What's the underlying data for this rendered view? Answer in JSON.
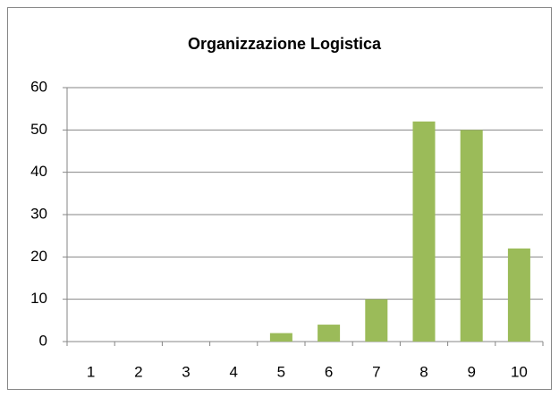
{
  "chart_data": {
    "type": "bar",
    "title": "Organizzazione Logistica",
    "categories": [
      "1",
      "2",
      "3",
      "4",
      "5",
      "6",
      "7",
      "8",
      "9",
      "10"
    ],
    "values": [
      0,
      0,
      0,
      0,
      2,
      4,
      10,
      52,
      50,
      22
    ],
    "color": "#9bbb59",
    "ylim": [
      0,
      60
    ],
    "yticks": [
      0,
      10,
      20,
      30,
      40,
      50,
      60
    ],
    "grid": true
  }
}
